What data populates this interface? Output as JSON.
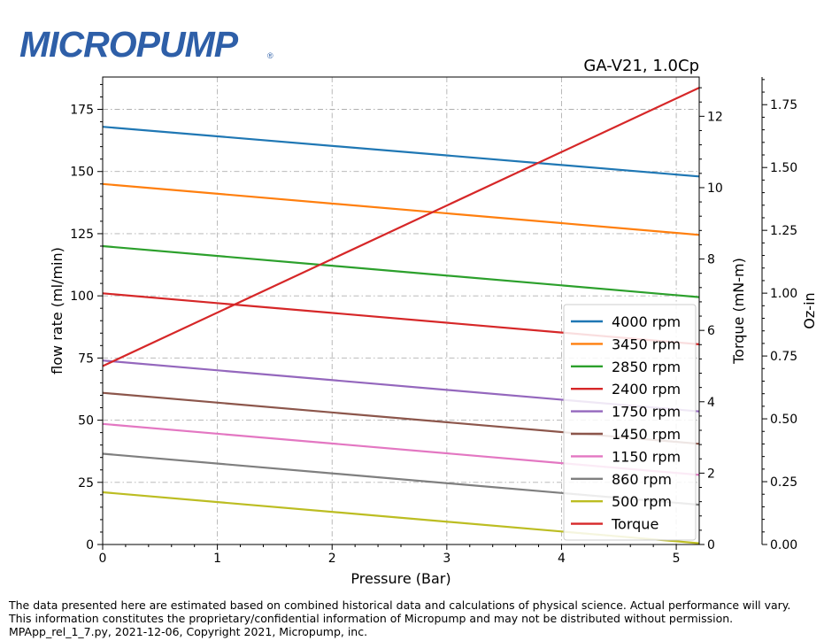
{
  "logo": {
    "text": "MICROPUMP",
    "mark": "®",
    "color": "#2e5fa8"
  },
  "chart_data": {
    "type": "line",
    "title": "GA-V21,  1.0Cp",
    "xlabel": "Pressure (Bar)",
    "ylabel": "flow rate (ml/min)",
    "y2label": "Torque (mN-m)",
    "y3label": "Oz-in",
    "xlim": [
      0,
      5.2
    ],
    "ylim": [
      0,
      188
    ],
    "y2lim": [
      0,
      13.1
    ],
    "y3lim": [
      0,
      1.86
    ],
    "xticks": [
      "0",
      "1",
      "2",
      "3",
      "4",
      "5"
    ],
    "yticks": [
      "0",
      "25",
      "50",
      "75",
      "100",
      "125",
      "150",
      "175"
    ],
    "y2ticks": [
      "0",
      "2",
      "4",
      "6",
      "8",
      "10",
      "12"
    ],
    "y3ticks": [
      "0.00",
      "0.25",
      "0.50",
      "0.75",
      "1.00",
      "1.25",
      "1.50",
      "1.75"
    ],
    "grid": true,
    "legend_position": "lower-right",
    "x": [
      0,
      5.2
    ],
    "series": [
      {
        "name": "4000 rpm",
        "color": "#1f77b4",
        "axis": "left",
        "values": [
          168,
          148
        ]
      },
      {
        "name": "3450 rpm",
        "color": "#ff7f0e",
        "axis": "left",
        "values": [
          145,
          124.5
        ]
      },
      {
        "name": "2850 rpm",
        "color": "#2ca02c",
        "axis": "left",
        "values": [
          120,
          99.5
        ]
      },
      {
        "name": "2400 rpm",
        "color": "#d62728",
        "axis": "left",
        "values": [
          101,
          80.5
        ]
      },
      {
        "name": "1750 rpm",
        "color": "#9467bd",
        "axis": "left",
        "values": [
          74,
          53.5
        ]
      },
      {
        "name": "1450 rpm",
        "color": "#8c564b",
        "axis": "left",
        "values": [
          61,
          40.5
        ]
      },
      {
        "name": "1150 rpm",
        "color": "#e377c2",
        "axis": "left",
        "values": [
          48.5,
          28
        ]
      },
      {
        "name": "860 rpm",
        "color": "#7f7f7f",
        "axis": "left",
        "values": [
          36.5,
          16
        ]
      },
      {
        "name": "500 rpm",
        "color": "#bcbd22",
        "axis": "left",
        "values": [
          21,
          0.5
        ]
      },
      {
        "name": "Torque",
        "color": "#d62728",
        "axis": "right",
        "values": [
          5.0,
          12.8
        ]
      }
    ]
  },
  "footer": {
    "line1": "The data presented here are estimated based on combined historical data and calculations of physical science.  Actual performance will vary.",
    "line2": "This information constitutes the proprietary/confidential information of Micropump and may not be distributed without permission.",
    "line3": "MPApp_rel_1_7.py, 2021-12-06, Copyright 2021, Micropump, inc."
  }
}
